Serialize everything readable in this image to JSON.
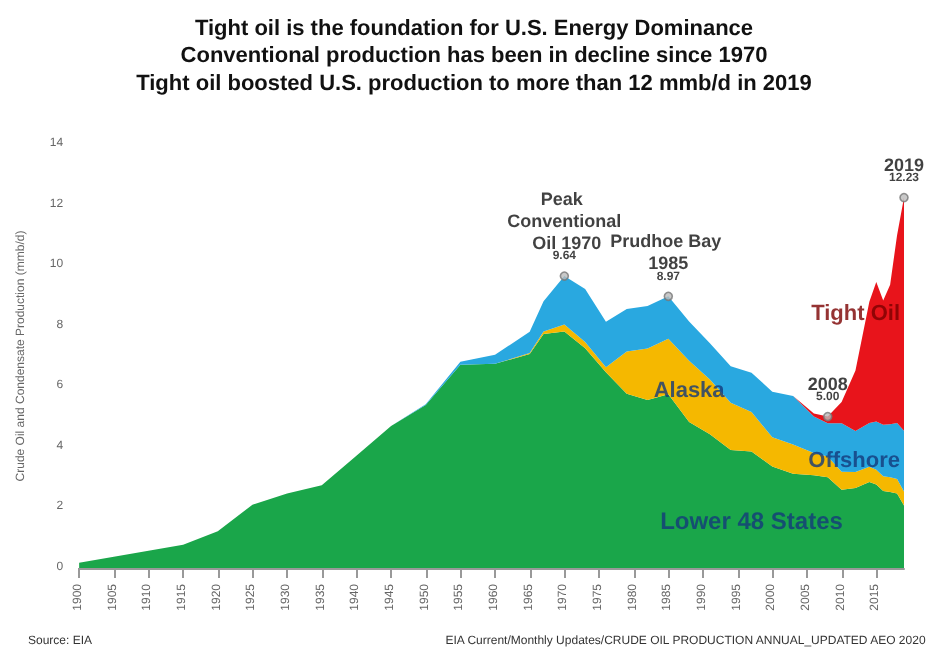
{
  "chart_data": {
    "type": "area",
    "stacked": true,
    "title": "Tight oil is the foundation for U.S. Energy Dominance",
    "subtitle": "Conventional production has been in decline since 1970\nTight oil boosted U.S. production to more than 12 mmb/d in 2019",
    "ylabel": "Crude Oil and Condensate Production (mmb/d)",
    "x": [
      1900,
      1905,
      1910,
      1915,
      1920,
      1925,
      1930,
      1935,
      1940,
      1945,
      1950,
      1955,
      1960,
      1965,
      1967,
      1970,
      1973,
      1976,
      1979,
      1982,
      1985,
      1988,
      1991,
      1994,
      1997,
      2000,
      2003,
      2006,
      2008,
      2010,
      2012,
      2014,
      2015,
      2016,
      2017,
      2018,
      2019
    ],
    "series": [
      {
        "name": "Lower 48 States",
        "color": "#1aa64a",
        "values": [
          0.17,
          0.37,
          0.57,
          0.77,
          1.21,
          2.09,
          2.46,
          2.73,
          3.71,
          4.69,
          5.38,
          6.71,
          6.74,
          7.07,
          7.73,
          7.81,
          7.26,
          6.46,
          5.75,
          5.55,
          5.74,
          4.82,
          4.42,
          3.9,
          3.85,
          3.35,
          3.11,
          3.06,
          3.0,
          2.58,
          2.64,
          2.84,
          2.76,
          2.54,
          2.51,
          2.46,
          2.06
        ]
      },
      {
        "name": "Alaska",
        "color": "#f5b800",
        "values": [
          0,
          0,
          0,
          0,
          0,
          0,
          0,
          0,
          0,
          0,
          0,
          0,
          0,
          0.03,
          0.08,
          0.23,
          0.2,
          0.17,
          1.4,
          1.7,
          1.83,
          2.02,
          1.8,
          1.56,
          1.3,
          0.97,
          0.97,
          0.74,
          0.68,
          0.6,
          0.53,
          0.5,
          0.48,
          0.49,
          0.49,
          0.48,
          0.47
        ]
      },
      {
        "name": "Offshore",
        "color": "#29a8e0",
        "values": [
          0,
          0,
          0,
          0,
          0,
          0,
          0,
          0,
          0,
          0,
          0.03,
          0.1,
          0.3,
          0.7,
          1.0,
          1.6,
          1.75,
          1.5,
          1.4,
          1.4,
          1.4,
          1.3,
          1.2,
          1.2,
          1.3,
          1.5,
          1.6,
          1.2,
          1.1,
          1.6,
          1.35,
          1.45,
          1.6,
          1.7,
          1.75,
          1.85,
          2.0
        ]
      },
      {
        "name": "Tight Oil",
        "color": "#e8141b",
        "values": [
          0,
          0,
          0,
          0,
          0,
          0,
          0,
          0,
          0,
          0,
          0,
          0,
          0,
          0,
          0,
          0,
          0,
          0,
          0,
          0,
          0,
          0,
          0,
          0,
          0,
          0,
          0,
          0.1,
          0.22,
          0.7,
          2.0,
          4.0,
          4.6,
          4.1,
          4.6,
          6.2,
          7.7
        ]
      }
    ],
    "xlim": [
      1900,
      2019
    ],
    "xticks": [
      1900,
      1905,
      1910,
      1915,
      1920,
      1925,
      1930,
      1935,
      1940,
      1945,
      1950,
      1955,
      1960,
      1965,
      1970,
      1975,
      1980,
      1985,
      1990,
      1995,
      2000,
      2005,
      2010,
      2015
    ],
    "ylim": [
      0,
      14
    ],
    "yticks": [
      0,
      2,
      4,
      6,
      8,
      10,
      12,
      14
    ],
    "grid": false,
    "legend": false,
    "annotations": [
      {
        "text": "Peak Conventional Oil 1970",
        "x": 1970,
        "y": 9.64
      },
      {
        "text": "9.64",
        "x": 1970,
        "y": 9.64
      },
      {
        "text": "Prudhoe Bay 1985",
        "x": 1985,
        "y": 8.97
      },
      {
        "text": "8.97",
        "x": 1985,
        "y": 8.97
      },
      {
        "text": "2008",
        "x": 2008,
        "y": 5.0
      },
      {
        "text": "5.00",
        "x": 2008,
        "y": 5.0
      },
      {
        "text": "2019",
        "x": 2019,
        "y": 12.23
      },
      {
        "text": "12.23",
        "x": 2019,
        "y": 12.23
      },
      "Source: EIA",
      "EIA Current/Monthly Updates/CRUDE OIL PRODUCTION ANNUAL_UPDATED AEO 2020"
    ]
  }
}
